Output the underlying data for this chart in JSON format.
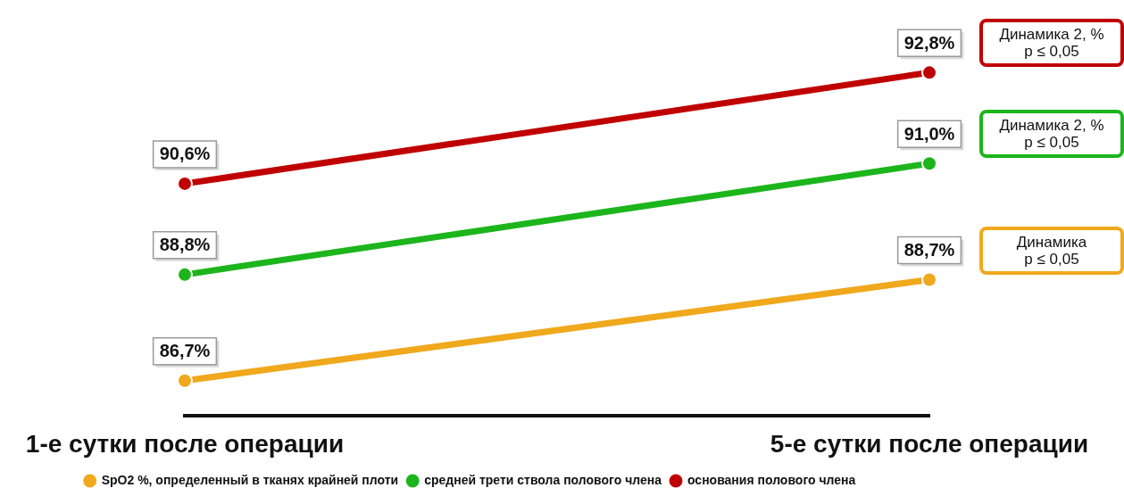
{
  "chart_data": {
    "type": "line",
    "categories": [
      "1-е сутки после операции",
      "5-е сутки после операции"
    ],
    "series": [
      {
        "name": "SpO2 %, определенный в тканях крайней плоти",
        "color": "#f0a81c",
        "values": [
          86.7,
          88.7
        ],
        "value_labels": [
          "86,7%",
          "88,7%"
        ]
      },
      {
        "name": "средней трети ствола полового члена",
        "color": "#1cb51c",
        "values": [
          88.8,
          91.0
        ],
        "value_labels": [
          "88,8%",
          "91,0%"
        ]
      },
      {
        "name": "основания полового члена",
        "color": "#c00000",
        "values": [
          90.6,
          92.8
        ],
        "value_labels": [
          "90,6%",
          "92,8%"
        ]
      }
    ],
    "tick_labels": "x",
    "legend": "bottom",
    "marker": "circle",
    "line_style": "solid",
    "annotations": [
      "Динамика 2, %\np ≤ 0,05",
      "Динамика 2, %\np ≤ 0,05",
      "Динамика\np ≤ 0,05"
    ]
  }
}
